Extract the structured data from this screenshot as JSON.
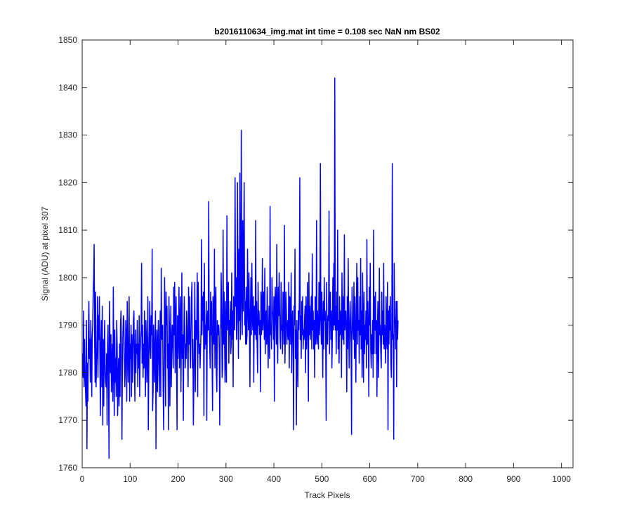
{
  "chart_data": {
    "type": "line",
    "title": "b2016110634_img.mat int time = 0.108 sec  NaN nm BS02",
    "xlabel": "Track Pixels",
    "ylabel": "Signal (ADU) at pixel 307",
    "xlim": [
      0,
      1024
    ],
    "ylim": [
      1760,
      1850
    ],
    "xticks": [
      0,
      100,
      200,
      300,
      400,
      500,
      600,
      700,
      800,
      900,
      1000
    ],
    "yticks": [
      1760,
      1770,
      1780,
      1790,
      1800,
      1810,
      1820,
      1830,
      1840,
      1850
    ],
    "grid": false,
    "line_color": "#0000ff",
    "series": [
      {
        "x_start": 1,
        "x_step": 1,
        "values": [
          1784,
          1779,
          1793,
          1777,
          1787,
          1781,
          1776,
          1773,
          1791,
          1764,
          1782,
          1774,
          1788,
          1795,
          1783,
          1787,
          1778,
          1791,
          1786,
          1775,
          1787,
          1790,
          1797,
          1800,
          1807,
          1787,
          1778,
          1797,
          1777,
          1782,
          1785,
          1796,
          1779,
          1792,
          1787,
          1796,
          1783,
          1771,
          1786,
          1791,
          1777,
          1794,
          1769,
          1787,
          1773,
          1785,
          1791,
          1780,
          1778,
          1777,
          1784,
          1769,
          1786,
          1790,
          1779,
          1762,
          1795,
          1787,
          1780,
          1788,
          1776,
          1782,
          1786,
          1774,
          1798,
          1783,
          1771,
          1789,
          1778,
          1783,
          1775,
          1791,
          1786,
          1771,
          1778,
          1783,
          1773,
          1786,
          1775,
          1790,
          1793,
          1785,
          1766,
          1781,
          1788,
          1792,
          1791,
          1783,
          1777,
          1781,
          1791,
          1787,
          1774,
          1795,
          1786,
          1778,
          1785,
          1796,
          1774,
          1786,
          1783,
          1790,
          1775,
          1788,
          1778,
          1784,
          1791,
          1793,
          1781,
          1774,
          1789,
          1780,
          1786,
          1784,
          1791,
          1777,
          1786,
          1781,
          1792,
          1775,
          1784,
          1787,
          1789,
          1803,
          1782,
          1790,
          1779,
          1786,
          1781,
          1793,
          1784,
          1775,
          1791,
          1787,
          1778,
          1784,
          1796,
          1768,
          1781,
          1788,
          1795,
          1785,
          1783,
          1792,
          1788,
          1806,
          1772,
          1776,
          1790,
          1785,
          1778,
          1787,
          1793,
          1764,
          1784,
          1789,
          1776,
          1786,
          1791,
          1782,
          1775,
          1788,
          1793,
          1775,
          1802,
          1787,
          1788,
          1790,
          1776,
          1768,
          1782,
          1800,
          1789,
          1773,
          1797,
          1790,
          1794,
          1781,
          1786,
          1768,
          1796,
          1790,
          1773,
          1786,
          1794,
          1777,
          1785,
          1790,
          1787,
          1781,
          1798,
          1788,
          1799,
          1780,
          1791,
          1796,
          1780,
          1768,
          1792,
          1783,
          1788,
          1798,
          1781,
          1790,
          1796,
          1776,
          1787,
          1801,
          1783,
          1788,
          1770,
          1785,
          1796,
          1790,
          1781,
          1786,
          1783,
          1793,
          1790,
          1784,
          1777,
          1798,
          1786,
          1796,
          1785,
          1781,
          1789,
          1796,
          1799,
          1781,
          1787,
          1769,
          1778,
          1786,
          1799,
          1776,
          1791,
          1787,
          1789,
          1801,
          1775,
          1799,
          1791,
          1784,
          1786,
          1781,
          1785,
          1789,
          1808,
          1788,
          1796,
          1791,
          1797,
          1771,
          1803,
          1785,
          1790,
          1786,
          1795,
          1770,
          1791,
          1793,
          1789,
          1816,
          1790,
          1786,
          1781,
          1797,
          1788,
          1795,
          1784,
          1772,
          1796,
          1790,
          1786,
          1806,
          1781,
          1793,
          1798,
          1780,
          1776,
          1791,
          1789,
          1788,
          1790,
          1784,
          1769,
          1789,
          1790,
          1801,
          1793,
          1779,
          1781,
          1810,
          1786,
          1797,
          1788,
          1778,
          1795,
          1783,
          1778,
          1813,
          1789,
          1794,
          1799,
          1782,
          1791,
          1788,
          1795,
          1784,
          1786,
          1801,
          1787,
          1793,
          1777,
          1796,
          1791,
          1789,
          1821,
          1794,
          1800,
          1787,
          1791,
          1820,
          1798,
          1783,
          1806,
          1791,
          1822,
          1787,
          1793,
          1831,
          1798,
          1788,
          1812,
          1793,
          1804,
          1820,
          1790,
          1795,
          1786,
          1798,
          1786,
          1788,
          1806,
          1794,
          1789,
          1801,
          1790,
          1777,
          1793,
          1800,
          1788,
          1803,
          1792,
          1789,
          1796,
          1778,
          1794,
          1790,
          1788,
          1812,
          1787,
          1795,
          1786,
          1780,
          1799,
          1790,
          1793,
          1788,
          1791,
          1776,
          1797,
          1788,
          1790,
          1804,
          1789,
          1793,
          1797,
          1787,
          1802,
          1784,
          1791,
          1793,
          1786,
          1798,
          1790,
          1781,
          1789,
          1794,
          1783,
          1815,
          1788,
          1790,
          1785,
          1800,
          1793,
          1792,
          1787,
          1796,
          1774,
          1794,
          1798,
          1791,
          1786,
          1807,
          1789,
          1782,
          1798,
          1792,
          1801,
          1793,
          1787,
          1785,
          1799,
          1789,
          1790,
          1784,
          1797,
          1794,
          1786,
          1811,
          1782,
          1788,
          1797,
          1793,
          1786,
          1789,
          1791,
          1787,
          1799,
          1781,
          1796,
          1795,
          1786,
          1801,
          1780,
          1790,
          1793,
          1786,
          1768,
          1794,
          1790,
          1806,
          1783,
          1789,
          1769,
          1791,
          1785,
          1777,
          1793,
          1789,
          1795,
          1821,
          1787,
          1792,
          1783,
          1795,
          1788,
          1796,
          1785,
          1789,
          1787,
          1791,
          1794,
          1780,
          1796,
          1785,
          1790,
          1799,
          1786,
          1774,
          1801,
          1788,
          1794,
          1787,
          1790,
          1796,
          1785,
          1805,
          1789,
          1793,
          1785,
          1791,
          1779,
          1796,
          1786,
          1788,
          1812,
          1786,
          1793,
          1788,
          1785,
          1799,
          1788,
          1792,
          1824,
          1791,
          1786,
          1797,
          1788,
          1779,
          1795,
          1785,
          1800,
          1791,
          1793,
          1787,
          1770,
          1799,
          1787,
          1786,
          1792,
          1791,
          1814,
          1784,
          1796,
          1797,
          1787,
          1793,
          1781,
          1788,
          1800,
          1789,
          1803,
          1790,
          1842,
          1789,
          1794,
          1784,
          1797,
          1789,
          1810,
          1785,
          1791,
          1782,
          1796,
          1788,
          1793,
          1792,
          1779,
          1801,
          1790,
          1787,
          1796,
          1786,
          1809,
          1789,
          1791,
          1793,
          1788,
          1776,
          1796,
          1785,
          1804,
          1790,
          1781,
          1789,
          1795,
          1791,
          1786,
          1767,
          1798,
          1791,
          1789,
          1787,
          1799,
          1783,
          1796,
          1788,
          1778,
          1794,
          1803,
          1786,
          1800,
          1789,
          1791,
          1782,
          1796,
          1788,
          1804,
          1785,
          1793,
          1779,
          1801,
          1790,
          1778,
          1797,
          1784,
          1790,
          1787,
          1793,
          1781,
          1808,
          1786,
          1795,
          1788,
          1775,
          1798,
          1790,
          1803,
          1785,
          1781,
          1788,
          1784,
          1791,
          1779,
          1810,
          1784,
          1796,
          1789,
          1797,
          1784,
          1791,
          1775,
          1789,
          1795,
          1779,
          1787,
          1802,
          1788,
          1790,
          1784,
          1781,
          1797,
          1788,
          1793,
          1786,
          1803,
          1785,
          1790,
          1787,
          1782,
          1796,
          1788,
          1785,
          1799,
          1768,
          1793,
          1786,
          1794,
          1789,
          1796,
          1782,
          1779,
          1791,
          1824,
          1787,
          1788,
          1766,
          1803,
          1792,
          1790,
          1785,
          1795,
          1777,
          1795,
          1787,
          1791
        ]
      }
    ]
  }
}
